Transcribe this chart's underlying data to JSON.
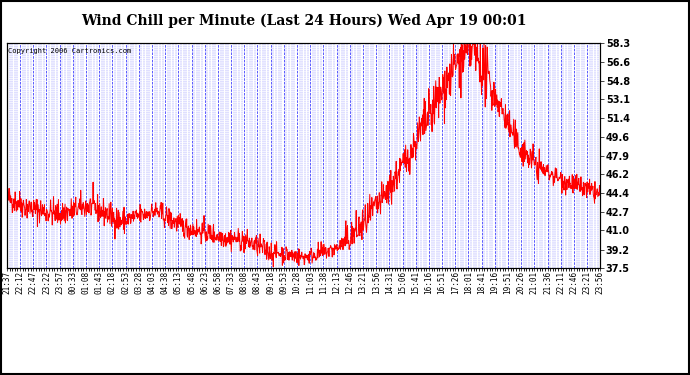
{
  "title": "Wind Chill per Minute (Last 24 Hours) Wed Apr 19 00:01",
  "copyright": "Copyright 2006 Cartronics.com",
  "y_min": 37.5,
  "y_max": 58.3,
  "y_ticks": [
    37.5,
    39.2,
    41.0,
    42.7,
    44.4,
    46.2,
    47.9,
    49.6,
    51.4,
    53.1,
    54.8,
    56.6,
    58.3
  ],
  "x_labels": [
    "21:37",
    "22:12",
    "22:47",
    "23:22",
    "23:57",
    "00:33",
    "01:08",
    "01:43",
    "02:18",
    "02:53",
    "03:28",
    "04:03",
    "04:38",
    "05:13",
    "05:48",
    "06:23",
    "06:58",
    "07:33",
    "08:08",
    "08:43",
    "09:18",
    "09:53",
    "10:28",
    "11:03",
    "11:38",
    "12:13",
    "12:46",
    "13:21",
    "13:56",
    "14:31",
    "15:06",
    "15:41",
    "16:16",
    "16:51",
    "17:26",
    "18:01",
    "18:41",
    "19:16",
    "19:51",
    "20:26",
    "21:01",
    "21:36",
    "22:11",
    "22:46",
    "23:21",
    "23:56"
  ],
  "line_color": "#FF0000",
  "bg_color": "#FFFFFF",
  "plot_bg_color": "#FFFFFF",
  "grid_color": "#0000FF",
  "title_color": "#000000",
  "border_color": "#000000",
  "fig_width": 6.9,
  "fig_height": 3.75,
  "dpi": 100
}
